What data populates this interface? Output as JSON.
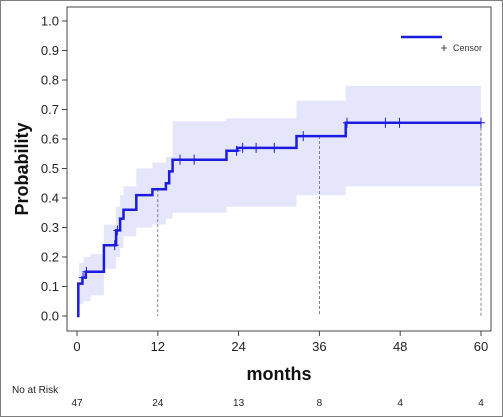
{
  "chart_data": {
    "type": "line",
    "xlabel": "months",
    "ylabel": "Probability",
    "xlim": [
      0,
      60
    ],
    "ylim": [
      0,
      1
    ],
    "xticks": [
      0,
      12,
      24,
      36,
      48,
      60
    ],
    "yticks": [
      "0.0",
      "0.1",
      "0.2",
      "0.3",
      "0.4",
      "0.5",
      "0.6",
      "0.7",
      "0.8",
      "0.9",
      "1.0"
    ],
    "legend": {
      "position": "top-right",
      "censor_label": "Censor"
    },
    "series": [
      {
        "kind": "step",
        "points": [
          [
            0,
            0
          ],
          [
            0.2,
            0.11
          ],
          [
            0.8,
            0.13
          ],
          [
            1.3,
            0.15
          ],
          [
            4,
            0.24
          ],
          [
            5.8,
            0.29
          ],
          [
            6.4,
            0.33
          ],
          [
            6.9,
            0.36
          ],
          [
            8.8,
            0.41
          ],
          [
            11.2,
            0.43
          ],
          [
            13.2,
            0.45
          ],
          [
            13.7,
            0.49
          ],
          [
            14.2,
            0.53
          ],
          [
            22.2,
            0.56
          ],
          [
            23.8,
            0.57
          ],
          [
            32.6,
            0.61
          ],
          [
            39.9,
            0.655
          ],
          [
            60,
            0.655
          ]
        ],
        "color": "#1c1ce0"
      }
    ],
    "confidence_band": {
      "color": "#e5e6fb",
      "upper": [
        [
          0,
          0.07
        ],
        [
          0.3,
          0.18
        ],
        [
          1,
          0.2
        ],
        [
          2,
          0.21
        ],
        [
          4,
          0.31
        ],
        [
          5.8,
          0.37
        ],
        [
          6.4,
          0.41
        ],
        [
          6.9,
          0.44
        ],
        [
          8.8,
          0.5
        ],
        [
          11.2,
          0.52
        ],
        [
          13.2,
          0.54
        ],
        [
          14.2,
          0.66
        ],
        [
          22.2,
          0.67
        ],
        [
          32.6,
          0.73
        ],
        [
          39.9,
          0.78
        ],
        [
          60,
          0.78
        ]
      ],
      "lower": [
        [
          0,
          0
        ],
        [
          0.3,
          0.04
        ],
        [
          1,
          0.05
        ],
        [
          2,
          0.07
        ],
        [
          4,
          0.16
        ],
        [
          5.8,
          0.2
        ],
        [
          6.4,
          0.23
        ],
        [
          6.9,
          0.27
        ],
        [
          8.8,
          0.3
        ],
        [
          11.2,
          0.31
        ],
        [
          13.2,
          0.33
        ],
        [
          14.2,
          0.35
        ],
        [
          22.2,
          0.37
        ],
        [
          32.6,
          0.41
        ],
        [
          39.9,
          0.44
        ],
        [
          60,
          0.44
        ]
      ]
    },
    "censor_marks": [
      [
        0.9,
        0.13
      ],
      [
        1.4,
        0.15
      ],
      [
        5.6,
        0.24
      ],
      [
        6,
        0.29
      ],
      [
        15.3,
        0.53
      ],
      [
        17.4,
        0.53
      ],
      [
        23.7,
        0.56
      ],
      [
        24.6,
        0.57
      ],
      [
        26.6,
        0.57
      ],
      [
        29.3,
        0.57
      ],
      [
        33.6,
        0.61
      ],
      [
        40.1,
        0.655
      ],
      [
        45.8,
        0.655
      ],
      [
        47.9,
        0.655
      ],
      [
        60,
        0.655
      ]
    ],
    "reference_lines": [
      {
        "x": 12,
        "y": 0.43
      },
      {
        "x": 36,
        "y": 0.61
      },
      {
        "x": 60,
        "y": 0.655
      }
    ],
    "risk_table": {
      "label": "No at Risk",
      "times": [
        0,
        12,
        24,
        36,
        48,
        60
      ],
      "counts": [
        "47",
        "24",
        "13",
        "8",
        "4",
        "4"
      ]
    }
  }
}
